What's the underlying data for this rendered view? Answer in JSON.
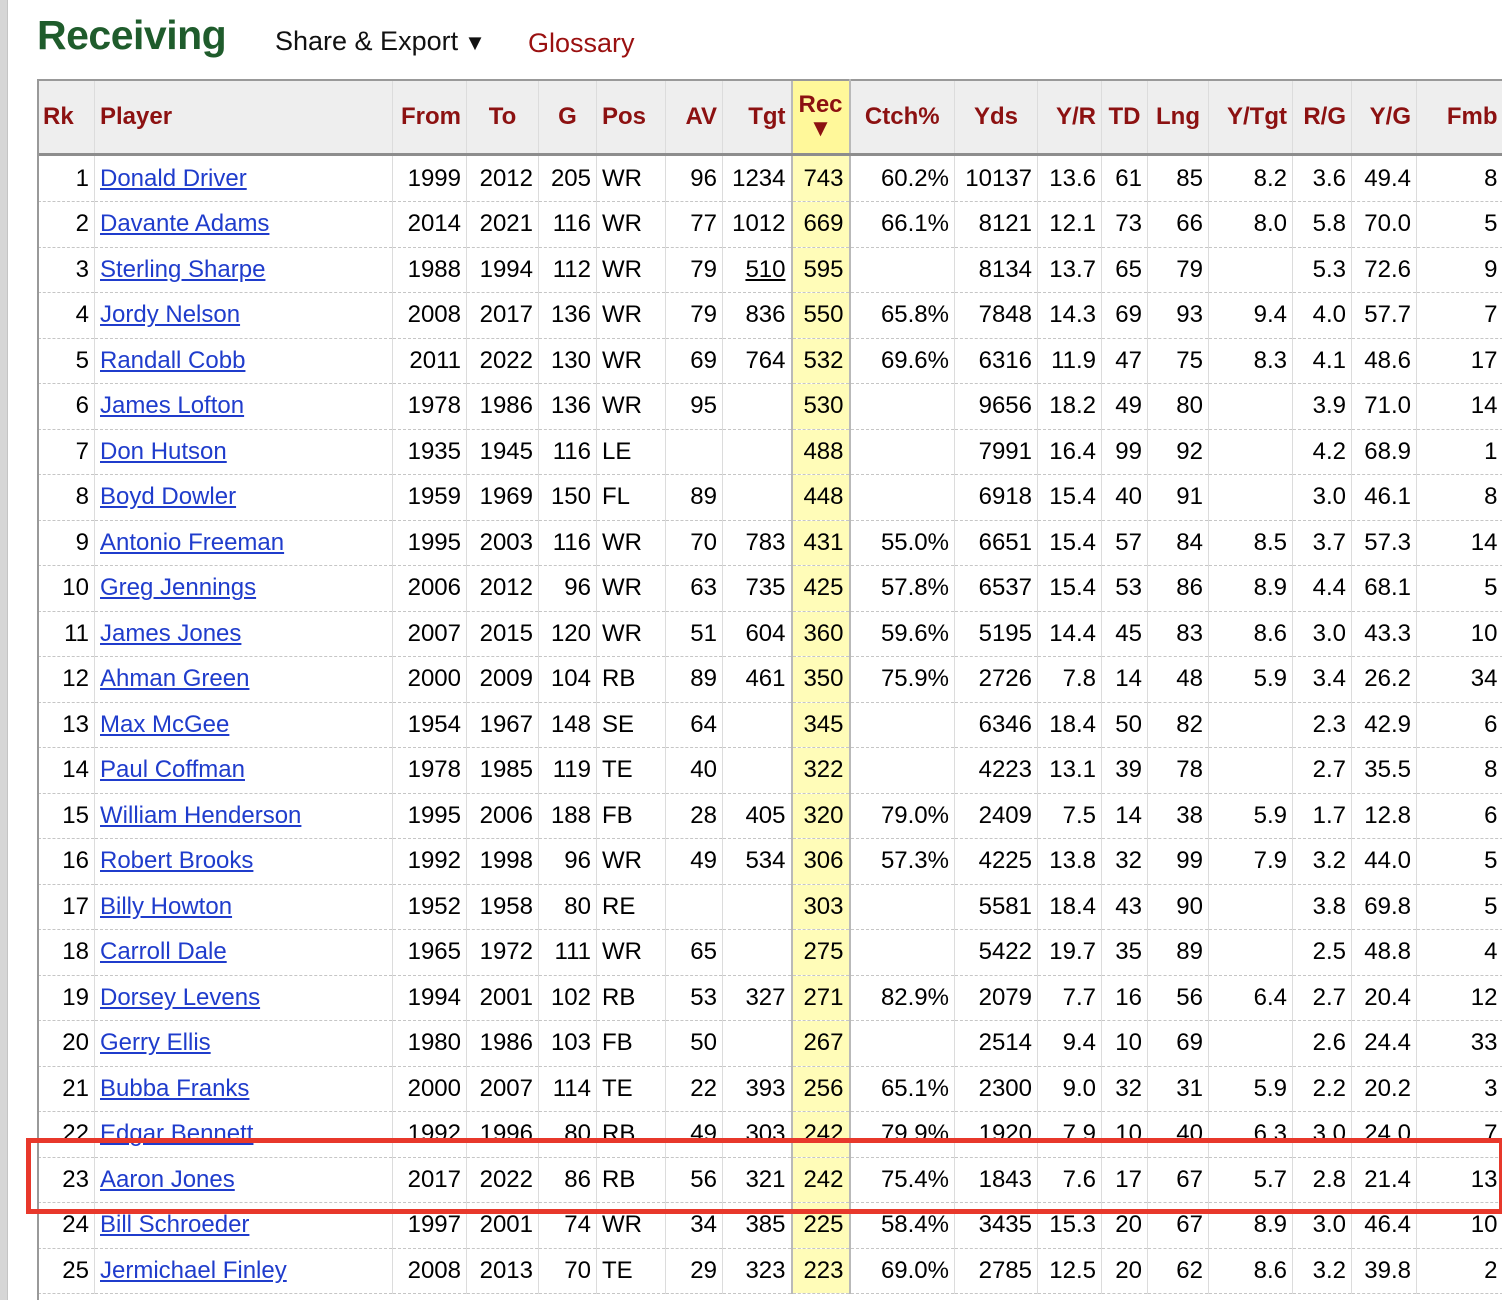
{
  "heading": {
    "title": "Receiving",
    "share_export": "Share & Export",
    "share_export_caret": "▼",
    "glossary": "Glossary"
  },
  "table": {
    "columns": {
      "rk": "Rk",
      "player": "Player",
      "from": "From",
      "to": "To",
      "g": "G",
      "pos": "Pos",
      "av": "AV",
      "tgt": "Tgt",
      "rec": "Rec",
      "rec_sort_icon": "▼",
      "ctch": "Ctch%",
      "yds": "Yds",
      "yr": "Y/R",
      "td": "TD",
      "lng": "Lng",
      "ytgt": "Y/Tgt",
      "rg": "R/G",
      "yg": "Y/G",
      "fmb": "Fmb"
    },
    "rows": [
      {
        "rk": "1",
        "player": "Donald Driver",
        "from": "1999",
        "to": "2012",
        "g": "205",
        "pos": "WR",
        "av": "96",
        "tgt": "1234",
        "rec": "743",
        "ctch": "60.2%",
        "yds": "10137",
        "yr": "13.6",
        "td": "61",
        "lng": "85",
        "ytgt": "8.2",
        "rg": "3.6",
        "yg": "49.4",
        "fmb": "8"
      },
      {
        "rk": "2",
        "player": "Davante Adams",
        "from": "2014",
        "to": "2021",
        "g": "116",
        "pos": "WR",
        "av": "77",
        "tgt": "1012",
        "rec": "669",
        "ctch": "66.1%",
        "yds": "8121",
        "yr": "12.1",
        "td": "73",
        "lng": "66",
        "ytgt": "8.0",
        "rg": "5.8",
        "yg": "70.0",
        "fmb": "5"
      },
      {
        "rk": "3",
        "player": "Sterling Sharpe",
        "from": "1988",
        "to": "1994",
        "g": "112",
        "pos": "WR",
        "av": "79",
        "tgt": "510",
        "rec": "595",
        "ctch": "",
        "yds": "8134",
        "yr": "13.7",
        "td": "65",
        "lng": "79",
        "ytgt": "",
        "rg": "5.3",
        "yg": "72.6",
        "fmb": "9"
      },
      {
        "rk": "4",
        "player": "Jordy Nelson",
        "from": "2008",
        "to": "2017",
        "g": "136",
        "pos": "WR",
        "av": "79",
        "tgt": "836",
        "rec": "550",
        "ctch": "65.8%",
        "yds": "7848",
        "yr": "14.3",
        "td": "69",
        "lng": "93",
        "ytgt": "9.4",
        "rg": "4.0",
        "yg": "57.7",
        "fmb": "7"
      },
      {
        "rk": "5",
        "player": "Randall Cobb",
        "from": "2011",
        "to": "2022",
        "g": "130",
        "pos": "WR",
        "av": "69",
        "tgt": "764",
        "rec": "532",
        "ctch": "69.6%",
        "yds": "6316",
        "yr": "11.9",
        "td": "47",
        "lng": "75",
        "ytgt": "8.3",
        "rg": "4.1",
        "yg": "48.6",
        "fmb": "17"
      },
      {
        "rk": "6",
        "player": "James Lofton",
        "from": "1978",
        "to": "1986",
        "g": "136",
        "pos": "WR",
        "av": "95",
        "tgt": "",
        "rec": "530",
        "ctch": "",
        "yds": "9656",
        "yr": "18.2",
        "td": "49",
        "lng": "80",
        "ytgt": "",
        "rg": "3.9",
        "yg": "71.0",
        "fmb": "14"
      },
      {
        "rk": "7",
        "player": "Don Hutson",
        "from": "1935",
        "to": "1945",
        "g": "116",
        "pos": "LE",
        "av": "",
        "tgt": "",
        "rec": "488",
        "ctch": "",
        "yds": "7991",
        "yr": "16.4",
        "td": "99",
        "lng": "92",
        "ytgt": "",
        "rg": "4.2",
        "yg": "68.9",
        "fmb": "1"
      },
      {
        "rk": "8",
        "player": "Boyd Dowler",
        "from": "1959",
        "to": "1969",
        "g": "150",
        "pos": "FL",
        "av": "89",
        "tgt": "",
        "rec": "448",
        "ctch": "",
        "yds": "6918",
        "yr": "15.4",
        "td": "40",
        "lng": "91",
        "ytgt": "",
        "rg": "3.0",
        "yg": "46.1",
        "fmb": "8"
      },
      {
        "rk": "9",
        "player": "Antonio Freeman",
        "from": "1995",
        "to": "2003",
        "g": "116",
        "pos": "WR",
        "av": "70",
        "tgt": "783",
        "rec": "431",
        "ctch": "55.0%",
        "yds": "6651",
        "yr": "15.4",
        "td": "57",
        "lng": "84",
        "ytgt": "8.5",
        "rg": "3.7",
        "yg": "57.3",
        "fmb": "14"
      },
      {
        "rk": "10",
        "player": "Greg Jennings",
        "from": "2006",
        "to": "2012",
        "g": "96",
        "pos": "WR",
        "av": "63",
        "tgt": "735",
        "rec": "425",
        "ctch": "57.8%",
        "yds": "6537",
        "yr": "15.4",
        "td": "53",
        "lng": "86",
        "ytgt": "8.9",
        "rg": "4.4",
        "yg": "68.1",
        "fmb": "5"
      },
      {
        "rk": "11",
        "player": "James Jones",
        "from": "2007",
        "to": "2015",
        "g": "120",
        "pos": "WR",
        "av": "51",
        "tgt": "604",
        "rec": "360",
        "ctch": "59.6%",
        "yds": "5195",
        "yr": "14.4",
        "td": "45",
        "lng": "83",
        "ytgt": "8.6",
        "rg": "3.0",
        "yg": "43.3",
        "fmb": "10"
      },
      {
        "rk": "12",
        "player": "Ahman Green",
        "from": "2000",
        "to": "2009",
        "g": "104",
        "pos": "RB",
        "av": "89",
        "tgt": "461",
        "rec": "350",
        "ctch": "75.9%",
        "yds": "2726",
        "yr": "7.8",
        "td": "14",
        "lng": "48",
        "ytgt": "5.9",
        "rg": "3.4",
        "yg": "26.2",
        "fmb": "34"
      },
      {
        "rk": "13",
        "player": "Max McGee",
        "from": "1954",
        "to": "1967",
        "g": "148",
        "pos": "SE",
        "av": "64",
        "tgt": "",
        "rec": "345",
        "ctch": "",
        "yds": "6346",
        "yr": "18.4",
        "td": "50",
        "lng": "82",
        "ytgt": "",
        "rg": "2.3",
        "yg": "42.9",
        "fmb": "6"
      },
      {
        "rk": "14",
        "player": "Paul Coffman",
        "from": "1978",
        "to": "1985",
        "g": "119",
        "pos": "TE",
        "av": "40",
        "tgt": "",
        "rec": "322",
        "ctch": "",
        "yds": "4223",
        "yr": "13.1",
        "td": "39",
        "lng": "78",
        "ytgt": "",
        "rg": "2.7",
        "yg": "35.5",
        "fmb": "8"
      },
      {
        "rk": "15",
        "player": "William Henderson",
        "from": "1995",
        "to": "2006",
        "g": "188",
        "pos": "FB",
        "av": "28",
        "tgt": "405",
        "rec": "320",
        "ctch": "79.0%",
        "yds": "2409",
        "yr": "7.5",
        "td": "14",
        "lng": "38",
        "ytgt": "5.9",
        "rg": "1.7",
        "yg": "12.8",
        "fmb": "6"
      },
      {
        "rk": "16",
        "player": "Robert Brooks",
        "from": "1992",
        "to": "1998",
        "g": "96",
        "pos": "WR",
        "av": "49",
        "tgt": "534",
        "rec": "306",
        "ctch": "57.3%",
        "yds": "4225",
        "yr": "13.8",
        "td": "32",
        "lng": "99",
        "ytgt": "7.9",
        "rg": "3.2",
        "yg": "44.0",
        "fmb": "5"
      },
      {
        "rk": "17",
        "player": "Billy Howton",
        "from": "1952",
        "to": "1958",
        "g": "80",
        "pos": "RE",
        "av": "",
        "tgt": "",
        "rec": "303",
        "ctch": "",
        "yds": "5581",
        "yr": "18.4",
        "td": "43",
        "lng": "90",
        "ytgt": "",
        "rg": "3.8",
        "yg": "69.8",
        "fmb": "5"
      },
      {
        "rk": "18",
        "player": "Carroll Dale",
        "from": "1965",
        "to": "1972",
        "g": "111",
        "pos": "WR",
        "av": "65",
        "tgt": "",
        "rec": "275",
        "ctch": "",
        "yds": "5422",
        "yr": "19.7",
        "td": "35",
        "lng": "89",
        "ytgt": "",
        "rg": "2.5",
        "yg": "48.8",
        "fmb": "4"
      },
      {
        "rk": "19",
        "player": "Dorsey Levens",
        "from": "1994",
        "to": "2001",
        "g": "102",
        "pos": "RB",
        "av": "53",
        "tgt": "327",
        "rec": "271",
        "ctch": "82.9%",
        "yds": "2079",
        "yr": "7.7",
        "td": "16",
        "lng": "56",
        "ytgt": "6.4",
        "rg": "2.7",
        "yg": "20.4",
        "fmb": "12"
      },
      {
        "rk": "20",
        "player": "Gerry Ellis",
        "from": "1980",
        "to": "1986",
        "g": "103",
        "pos": "FB",
        "av": "50",
        "tgt": "",
        "rec": "267",
        "ctch": "",
        "yds": "2514",
        "yr": "9.4",
        "td": "10",
        "lng": "69",
        "ytgt": "",
        "rg": "2.6",
        "yg": "24.4",
        "fmb": "33"
      },
      {
        "rk": "21",
        "player": "Bubba Franks",
        "from": "2000",
        "to": "2007",
        "g": "114",
        "pos": "TE",
        "av": "22",
        "tgt": "393",
        "rec": "256",
        "ctch": "65.1%",
        "yds": "2300",
        "yr": "9.0",
        "td": "32",
        "lng": "31",
        "ytgt": "5.9",
        "rg": "2.2",
        "yg": "20.2",
        "fmb": "3"
      },
      {
        "rk": "22",
        "player": "Edgar Bennett",
        "from": "1992",
        "to": "1996",
        "g": "80",
        "pos": "RB",
        "av": "49",
        "tgt": "303",
        "rec": "242",
        "ctch": "79.9%",
        "yds": "1920",
        "yr": "7.9",
        "td": "10",
        "lng": "40",
        "ytgt": "6.3",
        "rg": "3.0",
        "yg": "24.0",
        "fmb": "7"
      },
      {
        "rk": "23",
        "player": "Aaron Jones",
        "from": "2017",
        "to": "2022",
        "g": "86",
        "pos": "RB",
        "av": "56",
        "tgt": "321",
        "rec": "242",
        "ctch": "75.4%",
        "yds": "1843",
        "yr": "7.6",
        "td": "17",
        "lng": "67",
        "ytgt": "5.7",
        "rg": "2.8",
        "yg": "21.4",
        "fmb": "13"
      },
      {
        "rk": "24",
        "player": "Bill Schroeder",
        "from": "1997",
        "to": "2001",
        "g": "74",
        "pos": "WR",
        "av": "34",
        "tgt": "385",
        "rec": "225",
        "ctch": "58.4%",
        "yds": "3435",
        "yr": "15.3",
        "td": "20",
        "lng": "67",
        "ytgt": "8.9",
        "rg": "3.0",
        "yg": "46.4",
        "fmb": "10"
      },
      {
        "rk": "25",
        "player": "Jermichael Finley",
        "from": "2008",
        "to": "2013",
        "g": "70",
        "pos": "TE",
        "av": "29",
        "tgt": "323",
        "rec": "223",
        "ctch": "69.0%",
        "yds": "2785",
        "yr": "12.5",
        "td": "20",
        "lng": "62",
        "ytgt": "8.6",
        "rg": "3.2",
        "yg": "39.8",
        "fmb": "2"
      }
    ]
  },
  "colors": {
    "title_green": "#1f5c2c",
    "header_red": "#8c1111",
    "link_blue": "#1f3ccc",
    "sorted_column_yellow": "#fffcb8",
    "highlight_box_red": "#e8382b"
  },
  "highlight": {
    "row_rk": "23"
  }
}
